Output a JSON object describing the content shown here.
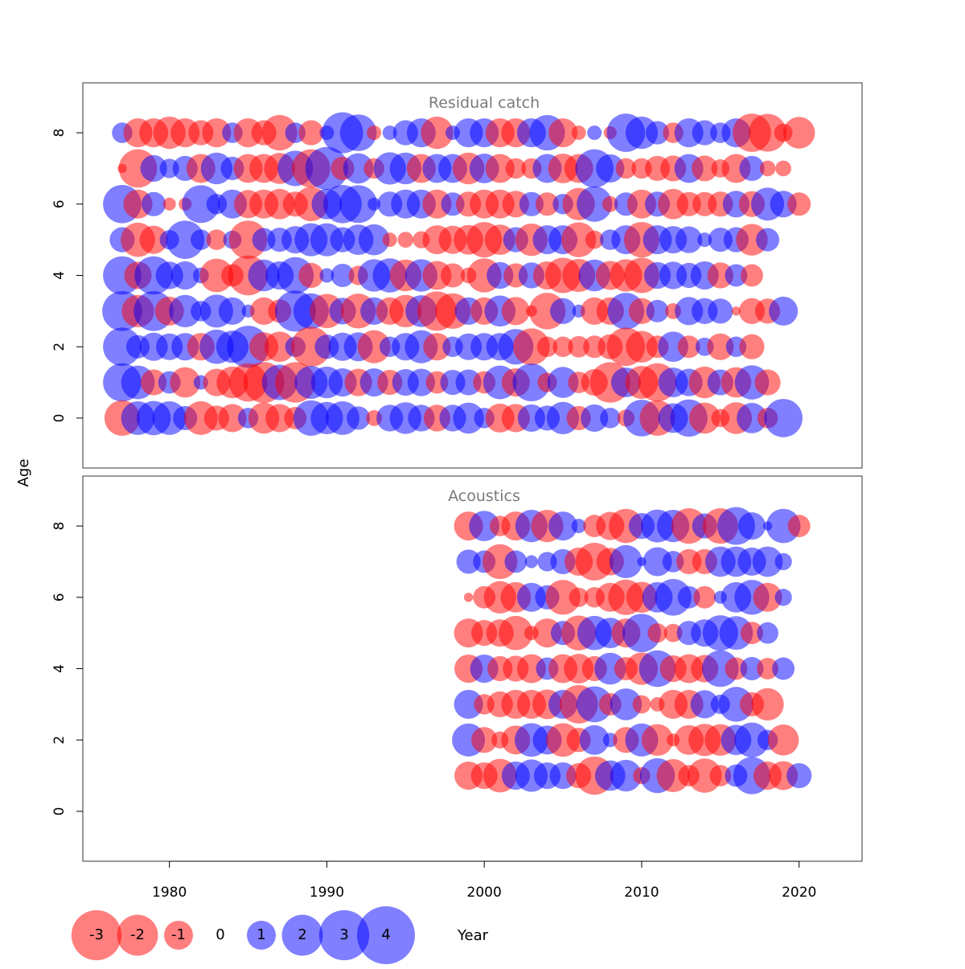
{
  "chart_data": {
    "type": "scatter",
    "encoding": "bubble",
    "xlabel": "Year",
    "ylabel": "Age",
    "xlim": [
      1974.5,
      2024
    ],
    "ylim": [
      -1.4,
      9.4
    ],
    "x_ticks": [
      1980,
      1990,
      2000,
      2010,
      2020
    ],
    "y_ticks": [
      0,
      2,
      4,
      6,
      8
    ],
    "colors": {
      "negative": "#ff0000",
      "positive": "#0000ff",
      "opacity": 0.5
    },
    "legend": {
      "position": "bottom-left",
      "items": [
        {
          "label": "-3",
          "value": -3
        },
        {
          "label": "-2",
          "value": -2
        },
        {
          "label": "-1",
          "value": -1
        },
        {
          "label": "0",
          "value": 0
        },
        {
          "label": "1",
          "value": 1
        },
        {
          "label": "2",
          "value": 2
        },
        {
          "label": "3",
          "value": 3
        },
        {
          "label": "4",
          "value": 4
        }
      ]
    },
    "panels": [
      {
        "title": "Residual catch",
        "years_start": 1977,
        "rows": [
          {
            "age": 8,
            "values": [
              0.5,
              -1,
              -1,
              -1.25,
              -1,
              -0.75,
              -1,
              0.5,
              -1,
              -0.75,
              -1.5,
              0.5,
              -0.75,
              0.25,
              2,
              1.6,
              -0.25,
              0.25,
              0.75,
              1,
              -1.25,
              0.25,
              1,
              1,
              -1,
              -1,
              1,
              1.5,
              -1,
              -0.25,
              0.25,
              -0.2,
              1.75,
              1.25,
              0.65,
              -0.5,
              1,
              0.75,
              0.5,
              1,
              -1.75,
              -1.7,
              -0.4,
              -1.2
            ]
          },
          {
            "age": 7,
            "values": [
              -0.1,
              -1.75,
              0.85,
              0.45,
              0.75,
              -1,
              1.2,
              0.65,
              -1,
              -1,
              -1.15,
              1.5,
              -1.75,
              2.2,
              -0.65,
              1.1,
              -0.5,
              1.25,
              1.2,
              -1,
              1,
              1,
              -1.2,
              1.05,
              -1,
              -0.5,
              -0.5,
              1,
              -1.05,
              -1,
              1.75,
              0.95,
              -0.5,
              -0.5,
              -0.75,
              -0.8,
              1,
              -0.8,
              -0.4,
              -1,
              0.75,
              -0.3,
              -0.3
            ]
          },
          {
            "age": 6,
            "values": [
              1.75,
              -1,
              0.7,
              -0.2,
              -0.2,
              1.7,
              0.5,
              1,
              -0.95,
              -1,
              -1.1,
              -0.75,
              -1.4,
              1.1,
              1.75,
              1.7,
              0.2,
              0.75,
              1,
              1,
              -1,
              0.65,
              -0.75,
              -1,
              -1,
              -0.85,
              0.7,
              -0.65,
              0.5,
              -1.25,
              1.5,
              -0.3,
              0.65,
              -1,
              0.75,
              -1.1,
              -0.7,
              -0.7,
              -0.75,
              0.85,
              -0.8,
              1.3,
              0.85,
              -0.65
            ]
          },
          {
            "age": 5,
            "values": [
              0.75,
              -1.4,
              -0.95,
              0.45,
              1.75,
              0.5,
              -0.5,
              0.4,
              -1.75,
              0.65,
              0.7,
              0.9,
              1.3,
              1.3,
              0.75,
              1.1,
              1.15,
              -0.25,
              -0.3,
              -0.35,
              -1,
              -0.95,
              -1.05,
              -1.5,
              -1.1,
              0.75,
              -1.25,
              1,
              1,
              -1.45,
              -0.4,
              0.5,
              1,
              -1.5,
              1,
              0.9,
              0.85,
              0.25,
              0.7,
              0.75,
              -1.2,
              0.65
            ]
          },
          {
            "age": 4,
            "values": [
              1.75,
              -0.9,
              1.75,
              0.9,
              0.95,
              0.3,
              -1.35,
              -0.6,
              -1.9,
              1.2,
              0.95,
              1.6,
              -0.75,
              0.25,
              0.65,
              -0.45,
              1.25,
              1.4,
              -1.2,
              1.25,
              -1,
              -0.7,
              -0.3,
              -1.4,
              0.85,
              -0.7,
              0.8,
              -0.95,
              -1.5,
              -1.3,
              1.2,
              -1,
              -1.25,
              -1.5,
              0.85,
              0.9,
              0.75,
              0.95,
              -0.8,
              0.6,
              -0.6
            ]
          },
          {
            "age": 3,
            "values": [
              1.9,
              -1.25,
              1.9,
              -1,
              1.25,
              0.5,
              1.3,
              0.9,
              0.2,
              -0.9,
              -0.65,
              2,
              1.5,
              -1.4,
              0.85,
              -1.45,
              0.9,
              -0.9,
              -1.25,
              1.2,
              -1.85,
              -1.5,
              0.9,
              -0.9,
              1.15,
              -0.95,
              -0.15,
              -1.6,
              0.8,
              0.2,
              -0.9,
              -0.9,
              1.6,
              -0.8,
              0.6,
              -0.3,
              0.95,
              0.8,
              0.75,
              -0.1,
              -0.8,
              -0.75,
              1
            ]
          },
          {
            "age": 2,
            "values": [
              1.75,
              0.65,
              0.95,
              0.85,
              0.9,
              -0.9,
              1.4,
              1.25,
              2.1,
              -1,
              -1.1,
              0.5,
              -1.9,
              0.7,
              0.95,
              1,
              -1.3,
              0.5,
              0.9,
              1.3,
              -0.9,
              0.5,
              0.85,
              0.9,
              0.9,
              1.5,
              -1.6,
              -0.5,
              -0.5,
              -0.55,
              -0.6,
              -0.75,
              -1.75,
              -1.2,
              -0.6,
              1.1,
              -0.6,
              0.4,
              -0.85,
              0.5,
              -0.75
            ]
          },
          {
            "age": 1,
            "values": [
              1.75,
              1.35,
              -0.8,
              0.6,
              -1.1,
              0.25,
              -0.9,
              -1.2,
              -1.75,
              -2,
              1.5,
              -1.95,
              1.3,
              1.2,
              0.95,
              -0.9,
              0.95,
              -0.75,
              0.85,
              0.9,
              -0.6,
              0.75,
              0.8,
              -0.6,
              1.35,
              -0.95,
              1.7,
              -0.45,
              1.15,
              -0.55,
              -0.85,
              -1.95,
              1.05,
              -1.3,
              -1.75,
              1.05,
              0.9,
              -1.2,
              0.8,
              -1.1,
              1.4,
              -0.8
            ]
          },
          {
            "age": 0,
            "values": [
              -1.5,
              1.35,
              1.4,
              1.35,
              0.7,
              -1.35,
              -0.75,
              -0.95,
              0.5,
              -1.15,
              -0.95,
              -0.6,
              1.5,
              1.25,
              1.35,
              0.65,
              -0.3,
              0.85,
              1.2,
              0.85,
              -0.85,
              0.85,
              1.15,
              0.5,
              -1,
              -0.95,
              0.9,
              0.75,
              1.25,
              -0.7,
              0.9,
              0.5,
              -0.35,
              1.6,
              -1.5,
              1.05,
              1.65,
              -1.15,
              -0.4,
              -1.2,
              1.1,
              -0.5,
              1.75
            ]
          }
        ]
      },
      {
        "title": "Acoustics",
        "years_start": 1999,
        "rows": [
          {
            "age": 8,
            "values": [
              -1,
              1.1,
              -0.5,
              -1,
              1.25,
              -1.25,
              1,
              0.25,
              -0.6,
              -0.95,
              -1.4,
              0.8,
              1.3,
              1.25,
              -1.5,
              0.75,
              -1.5,
              1.7,
              0.9,
              0.1,
              1.4,
              -0.6
            ]
          },
          {
            "age": 7,
            "values": [
              0.7,
              0.6,
              -1.45,
              0.6,
              0.2,
              0.45,
              0.75,
              -0.95,
              -1.7,
              -0.9,
              1.3,
              0.1,
              1,
              0.55,
              -0.75,
              -0.75,
              1.1,
              1.1,
              0.95,
              1.1,
              0.35
            ]
          },
          {
            "age": 6,
            "values": [
              -0.1,
              -0.6,
              -1.25,
              -1.1,
              1,
              0.7,
              -1.45,
              -0.45,
              -0.5,
              -1,
              -1.5,
              -1.15,
              1.1,
              1.6,
              0.6,
              -0.6,
              0.2,
              1.1,
              1.45,
              -1,
              0.35
            ]
          },
          {
            "age": 5,
            "values": [
              -1,
              -0.8,
              -0.9,
              -1.4,
              -0.25,
              -1,
              0.7,
              -1.45,
              1.4,
              1.1,
              -1,
              1.75,
              -0.45,
              -0.4,
              0.7,
              0.9,
              1.5,
              1.35,
              -0.6,
              0.55
            ]
          },
          {
            "age": 4,
            "values": [
              -0.95,
              0.95,
              -0.75,
              -0.8,
              -1,
              0.6,
              -1,
              -1.05,
              -0.75,
              1.2,
              -0.65,
              -1.25,
              1.6,
              -0.85,
              -1,
              -0.9,
              1.6,
              -0.6,
              0.65,
              -0.55,
              0.6
            ]
          },
          {
            "age": 3,
            "values": [
              1,
              -0.5,
              -0.8,
              -1,
              -1,
              -1.05,
              1,
              -1.75,
              1.55,
              -0.6,
              1.2,
              -0.4,
              -0.25,
              -1,
              -1,
              0.95,
              0.45,
              1.45,
              -0.7,
              -1.25
            ]
          },
          {
            "age": 2,
            "values": [
              1.3,
              -0.8,
              -0.35,
              -1,
              1.35,
              1,
              -1.35,
              -0.7,
              1.05,
              0.25,
              -0.8,
              1.3,
              -1.2,
              -0.2,
              -1.05,
              -1.25,
              -1.2,
              1.1,
              1.45,
              0.5,
              -1.15
            ]
          },
          {
            "age": 1,
            "values": [
              -0.95,
              -0.85,
              -1.35,
              0.95,
              1.25,
              0.85,
              0.85,
              -0.75,
              -1.75,
              1.1,
              1.2,
              -0.35,
              1.45,
              -1.3,
              -0.55,
              -1.4,
              -0.55,
              0.6,
              1.65,
              -0.95,
              -1,
              0.75
            ]
          },
          {
            "age": 0,
            "values": []
          }
        ]
      }
    ]
  }
}
